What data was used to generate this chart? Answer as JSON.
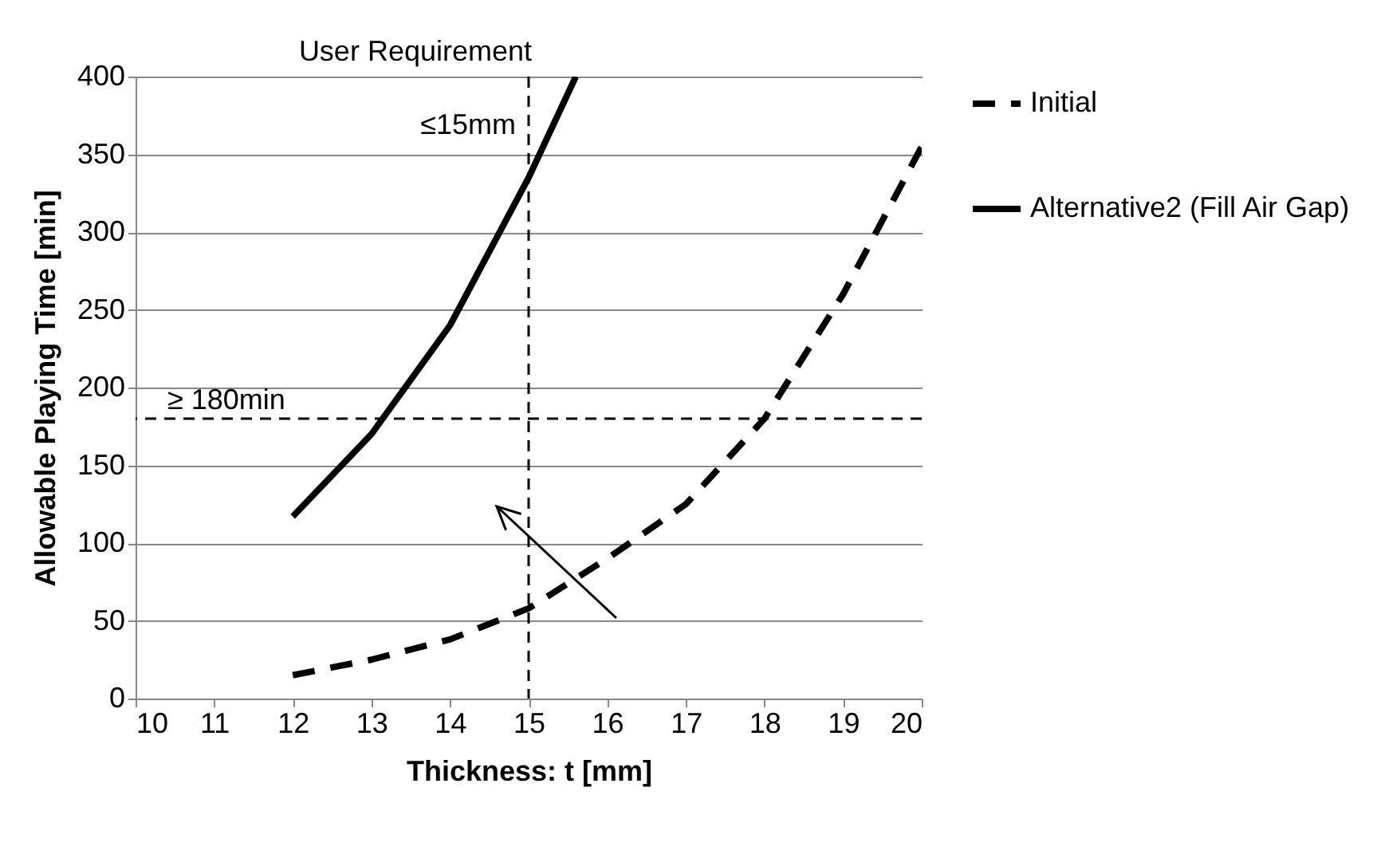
{
  "chart_data": {
    "type": "line",
    "xlabel": "Thickness: t [mm]",
    "ylabel": "Allowable Playing Time [min]",
    "xlim": [
      10,
      20
    ],
    "xticks": [
      10,
      11,
      12,
      13,
      14,
      15,
      16,
      17,
      18,
      19,
      20
    ],
    "ylim": [
      0,
      400
    ],
    "yticks": [
      0,
      50,
      100,
      150,
      200,
      250,
      300,
      350,
      400
    ],
    "grid": "y",
    "legend": "right",
    "marker": "none",
    "series": [
      {
        "name": "Initial",
        "color": "#000000",
        "line_style": "dashed",
        "x": [
          12,
          13,
          14,
          15,
          16,
          17,
          18,
          19,
          20
        ],
        "values": [
          15,
          25,
          38,
          58,
          90,
          125,
          180,
          260,
          355
        ]
      },
      {
        "name": "Alternative2 (Fill Air Gap)",
        "color": "#000000",
        "line_style": "solid",
        "x": [
          12,
          13,
          14,
          15,
          15.6
        ],
        "values": [
          117,
          170,
          240,
          335,
          400
        ]
      }
    ],
    "ref_lines": [
      {
        "axis": "x",
        "value": 15,
        "label": "User Requirement",
        "line_style": "dashed",
        "color": "#000000"
      },
      {
        "axis": "y",
        "value": 180,
        "label": "≥ 180min",
        "line_style": "dashed",
        "color": "#000000"
      }
    ],
    "annotations": [
      "≤15mm"
    ]
  }
}
